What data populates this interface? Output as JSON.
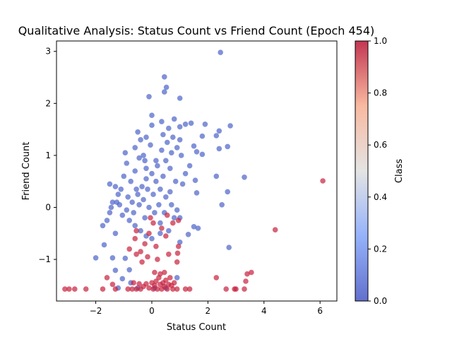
{
  "chart_data": {
    "type": "scatter",
    "title": "Qualitative Analysis: Status Count vs Friend Count (Epoch 454)",
    "xlabel": "Status Count",
    "ylabel": "Friend Count",
    "xlim": [
      -3.4,
      6.6
    ],
    "ylim": [
      -1.8,
      3.2
    ],
    "xticks": [
      -2,
      0,
      2,
      4,
      6
    ],
    "yticks": [
      -1,
      0,
      1,
      2,
      3
    ],
    "grid": false,
    "colorbar": {
      "label": "Class",
      "colormap": "coolwarm",
      "range": [
        0.0,
        1.0
      ],
      "ticks": [
        "0.0",
        "0.2",
        "0.4",
        "0.6",
        "0.8",
        "1.0"
      ]
    },
    "colors": {
      "class_0": "#4b63c9",
      "class_1": "#c7213d"
    },
    "marker_alpha": 0.7,
    "series": [
      {
        "class_value": 0,
        "points": [
          [
            2.45,
            2.98
          ],
          [
            0.45,
            2.51
          ],
          [
            0.52,
            2.31
          ],
          [
            0.45,
            2.22
          ],
          [
            -0.1,
            2.13
          ],
          [
            1.0,
            2.1
          ],
          [
            0.0,
            1.77
          ],
          [
            0.35,
            1.65
          ],
          [
            0.8,
            1.7
          ],
          [
            1.0,
            1.55
          ],
          [
            1.2,
            1.6
          ],
          [
            1.4,
            1.62
          ],
          [
            1.9,
            1.6
          ],
          [
            2.8,
            1.57
          ],
          [
            2.4,
            1.47
          ],
          [
            2.3,
            1.38
          ],
          [
            1.8,
            1.37
          ],
          [
            1.0,
            1.3
          ],
          [
            0.0,
            1.58
          ],
          [
            -0.2,
            1.35
          ],
          [
            0.6,
            1.52
          ],
          [
            0.4,
            1.4
          ],
          [
            2.7,
            1.17
          ],
          [
            2.4,
            1.13
          ],
          [
            1.5,
            1.18
          ],
          [
            1.6,
            1.07
          ],
          [
            1.8,
            1.02
          ],
          [
            1.35,
            0.8
          ],
          [
            1.55,
            0.52
          ],
          [
            1.6,
            0.28
          ],
          [
            2.3,
            0.6
          ],
          [
            3.3,
            0.58
          ],
          [
            2.7,
            0.3
          ],
          [
            2.5,
            0.05
          ],
          [
            2.75,
            -0.77
          ],
          [
            1.5,
            -0.37
          ],
          [
            1.65,
            -0.4
          ],
          [
            1.3,
            -0.52
          ],
          [
            1.0,
            -0.67
          ],
          [
            0.3,
            -0.5
          ],
          [
            -1.4,
            -0.97
          ],
          [
            -0.95,
            -0.98
          ],
          [
            -1.3,
            -1.21
          ],
          [
            -0.8,
            -1.2
          ],
          [
            -1.05,
            -1.37
          ],
          [
            -0.75,
            -1.45
          ],
          [
            -1.2,
            -1.55
          ],
          [
            -0.5,
            -1.55
          ],
          [
            0.1,
            -1.55
          ],
          [
            0.5,
            -1.55
          ],
          [
            0.9,
            -1.35
          ],
          [
            -2.0,
            -0.97
          ],
          [
            -1.7,
            -0.72
          ],
          [
            -1.75,
            -0.35
          ],
          [
            -1.5,
            -0.1
          ],
          [
            -1.45,
            0.0
          ],
          [
            -1.4,
            0.1
          ],
          [
            -1.5,
            0.45
          ],
          [
            -1.3,
            0.4
          ],
          [
            -1.2,
            0.25
          ],
          [
            -0.9,
            0.85
          ],
          [
            -0.95,
            1.05
          ],
          [
            -0.6,
            1.15
          ],
          [
            -0.5,
            1.45
          ],
          [
            -0.4,
            1.3
          ],
          [
            -0.3,
            1.0
          ],
          [
            0.9,
            1.15
          ],
          [
            1.05,
            1.0
          ],
          [
            0.5,
            0.9
          ],
          [
            0.2,
            0.8
          ],
          [
            -0.2,
            0.75
          ],
          [
            -0.6,
            0.7
          ],
          [
            -1.1,
            0.35
          ],
          [
            -1.25,
            0.1
          ],
          [
            -1.15,
            0.05
          ],
          [
            -0.9,
            -0.05
          ],
          [
            -0.7,
            0.1
          ],
          [
            -0.5,
            0.25
          ],
          [
            -0.35,
            0.4
          ],
          [
            -0.2,
            0.55
          ],
          [
            0.0,
            0.65
          ],
          [
            0.15,
            0.5
          ],
          [
            0.3,
            0.35
          ],
          [
            0.5,
            0.2
          ],
          [
            0.7,
            0.05
          ],
          [
            0.9,
            -0.05
          ],
          [
            1.0,
            -0.2
          ],
          [
            -0.8,
            -0.25
          ],
          [
            -0.6,
            -0.35
          ],
          [
            -0.4,
            -0.45
          ],
          [
            -0.2,
            -0.55
          ],
          [
            0.0,
            -0.6
          ],
          [
            0.3,
            -0.3
          ],
          [
            0.6,
            -0.45
          ],
          [
            0.8,
            -0.2
          ],
          [
            1.1,
            0.45
          ],
          [
            1.2,
            0.65
          ],
          [
            0.7,
            1.05
          ],
          [
            0.35,
            1.1
          ],
          [
            -0.05,
            1.2
          ],
          [
            -0.45,
            0.95
          ],
          [
            -0.75,
            0.5
          ],
          [
            -0.55,
            0.35
          ],
          [
            -0.3,
            0.15
          ],
          [
            -0.1,
            0.0
          ],
          [
            0.1,
            -0.1
          ],
          [
            0.4,
            0.6
          ],
          [
            0.65,
            0.75
          ],
          [
            0.85,
            0.5
          ],
          [
            -1.0,
            0.6
          ],
          [
            -1.3,
            -0.5
          ],
          [
            -1.6,
            -0.25
          ],
          [
            -0.25,
            0.9
          ],
          [
            0.55,
            1.25
          ],
          [
            0.75,
            1.35
          ],
          [
            -0.65,
            -0.1
          ],
          [
            -0.45,
            0.05
          ],
          [
            -0.25,
            -0.2
          ],
          [
            0.05,
            0.25
          ],
          [
            0.25,
            0.05
          ],
          [
            0.45,
            -0.1
          ],
          [
            0.65,
            0.3
          ],
          [
            -0.85,
            0.2
          ],
          [
            -1.05,
            -0.15
          ],
          [
            -0.15,
            0.35
          ],
          [
            0.15,
            0.9
          ]
        ]
      },
      {
        "class_value": 1,
        "points": [
          [
            6.1,
            0.51
          ],
          [
            4.4,
            -0.43
          ],
          [
            3.55,
            -1.25
          ],
          [
            3.4,
            -1.28
          ],
          [
            3.35,
            -1.42
          ],
          [
            2.3,
            -1.35
          ],
          [
            3.3,
            -1.57
          ],
          [
            2.95,
            -1.57
          ],
          [
            2.65,
            -1.57
          ],
          [
            1.2,
            -1.57
          ],
          [
            1.35,
            -1.57
          ],
          [
            3.0,
            -1.57
          ],
          [
            -3.1,
            -1.57
          ],
          [
            -2.95,
            -1.57
          ],
          [
            -2.75,
            -1.57
          ],
          [
            -2.35,
            -1.57
          ],
          [
            -1.75,
            -1.57
          ],
          [
            -1.6,
            -1.35
          ],
          [
            -1.4,
            -1.48
          ],
          [
            -1.3,
            -1.57
          ],
          [
            -0.85,
            -1.57
          ],
          [
            -0.55,
            -1.57
          ],
          [
            -0.45,
            -1.47
          ],
          [
            -0.3,
            -1.52
          ],
          [
            -0.2,
            -1.47
          ],
          [
            -0.1,
            -1.55
          ],
          [
            0.0,
            -1.45
          ],
          [
            0.05,
            -1.57
          ],
          [
            0.1,
            -1.5
          ],
          [
            0.15,
            -1.42
          ],
          [
            0.2,
            -1.57
          ],
          [
            0.25,
            -1.35
          ],
          [
            0.3,
            -1.48
          ],
          [
            0.35,
            -1.57
          ],
          [
            0.4,
            -1.45
          ],
          [
            0.45,
            -1.52
          ],
          [
            0.5,
            -1.4
          ],
          [
            0.55,
            -1.57
          ],
          [
            0.6,
            -1.48
          ],
          [
            0.65,
            -1.35
          ],
          [
            0.7,
            -1.5
          ],
          [
            0.75,
            -1.57
          ],
          [
            0.8,
            -1.45
          ],
          [
            0.9,
            -1.57
          ],
          [
            -0.7,
            -1.57
          ],
          [
            -0.65,
            -1.45
          ],
          [
            -0.4,
            -1.57
          ],
          [
            0.3,
            -1.28
          ],
          [
            0.95,
            -0.75
          ],
          [
            0.92,
            -0.88
          ],
          [
            0.9,
            -1.05
          ],
          [
            0.6,
            -0.9
          ],
          [
            0.5,
            -0.55
          ],
          [
            0.55,
            -0.15
          ],
          [
            -0.4,
            -0.85
          ],
          [
            -0.55,
            -0.9
          ],
          [
            -0.8,
            -0.8
          ],
          [
            -0.55,
            -0.45
          ],
          [
            -0.1,
            -0.5
          ],
          [
            0.05,
            -0.3
          ],
          [
            -0.15,
            -0.95
          ],
          [
            0.2,
            -1.0
          ],
          [
            -0.35,
            -1.05
          ],
          [
            -0.25,
            -0.7
          ],
          [
            -0.05,
            -0.2
          ],
          [
            0.35,
            -0.4
          ],
          [
            0.15,
            -0.75
          ],
          [
            -0.6,
            -0.6
          ],
          [
            0.75,
            -0.3
          ],
          [
            0.95,
            -0.25
          ],
          [
            0.45,
            -1.25
          ],
          [
            0.1,
            -1.25
          ]
        ]
      }
    ]
  }
}
